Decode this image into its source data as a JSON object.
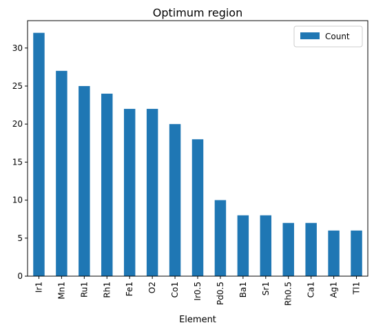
{
  "chart_data": {
    "type": "bar",
    "title": "Optimum region",
    "xlabel": "Element",
    "ylabel": "",
    "categories": [
      "Ir1",
      "Mn1",
      "Ru1",
      "Rh1",
      "Fe1",
      "O2",
      "Co1",
      "Ir0.5",
      "Pd0.5",
      "Ba1",
      "Sr1",
      "Rh0.5",
      "Ca1",
      "Ag1",
      "Tl1"
    ],
    "series": [
      {
        "name": "Count",
        "values": [
          32,
          27,
          25,
          24,
          22,
          22,
          20,
          18,
          10,
          8,
          8,
          7,
          7,
          6,
          6
        ],
        "color": "#1f77b4"
      }
    ],
    "ylim": [
      0,
      33.6
    ],
    "yticks": [
      0,
      5,
      10,
      15,
      20,
      25,
      30
    ],
    "grid": false,
    "legend_position": "top-right"
  }
}
